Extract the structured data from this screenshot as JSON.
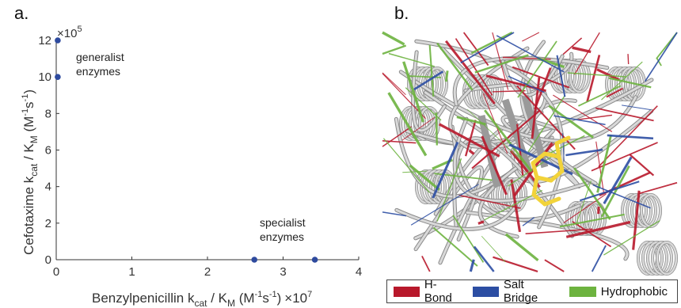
{
  "panel_a_label": "a.",
  "panel_b_label": "b.",
  "chart_data": {
    "type": "scatter",
    "xlabel_prefix": "Benzylpenicillin k",
    "xlabel_sub1": "cat",
    "xlabel_mid": " / K",
    "xlabel_sub2": "M",
    "xlabel_units": " (M",
    "xlabel_sup1": "-1",
    "xlabel_units2": "s",
    "xlabel_sup2": "-1",
    "xlabel_close": ")",
    "x_multiplier": "×10",
    "x_multiplier_exp": "7",
    "ylabel_prefix": "Cefotaxime k",
    "ylabel_sub1": "cat",
    "ylabel_mid": " / K",
    "ylabel_sub2": "M",
    "ylabel_units": " (M",
    "ylabel_sup1": "-1",
    "ylabel_units2": "s",
    "ylabel_sup2": "-1",
    "ylabel_close": ")",
    "y_multiplier": "×10",
    "y_multiplier_exp": "5",
    "xlim": [
      0,
      4
    ],
    "ylim": [
      0,
      12
    ],
    "x_ticks": [
      0,
      1,
      2,
      3,
      4
    ],
    "y_ticks": [
      0,
      2,
      4,
      6,
      8,
      10,
      12
    ],
    "marker_color": "#2e4a9e",
    "points": [
      {
        "x": 0.02,
        "y": 12
      },
      {
        "x": 0.02,
        "y": 10
      },
      {
        "x": 2.62,
        "y": 0
      },
      {
        "x": 3.42,
        "y": 0
      }
    ],
    "annotations": [
      {
        "lines": [
          "generalist",
          "enzymes"
        ]
      },
      {
        "lines": [
          "specialist",
          "enzymes"
        ]
      }
    ]
  },
  "legend": {
    "items": [
      {
        "label": "H-Bond",
        "color": "#b8182b"
      },
      {
        "label": "Salt Bridge",
        "color": "#2c4ea3"
      },
      {
        "label": "Hydrophobic",
        "color": "#6db33f"
      }
    ]
  },
  "structure_colors": {
    "ribbon": "#d9d9d9",
    "ribbon_edge": "#8a8a8a",
    "hbond": "#b8182b",
    "salt": "#2c4ea3",
    "hydrophobic": "#6db33f",
    "ligand": "#f2d33a"
  }
}
